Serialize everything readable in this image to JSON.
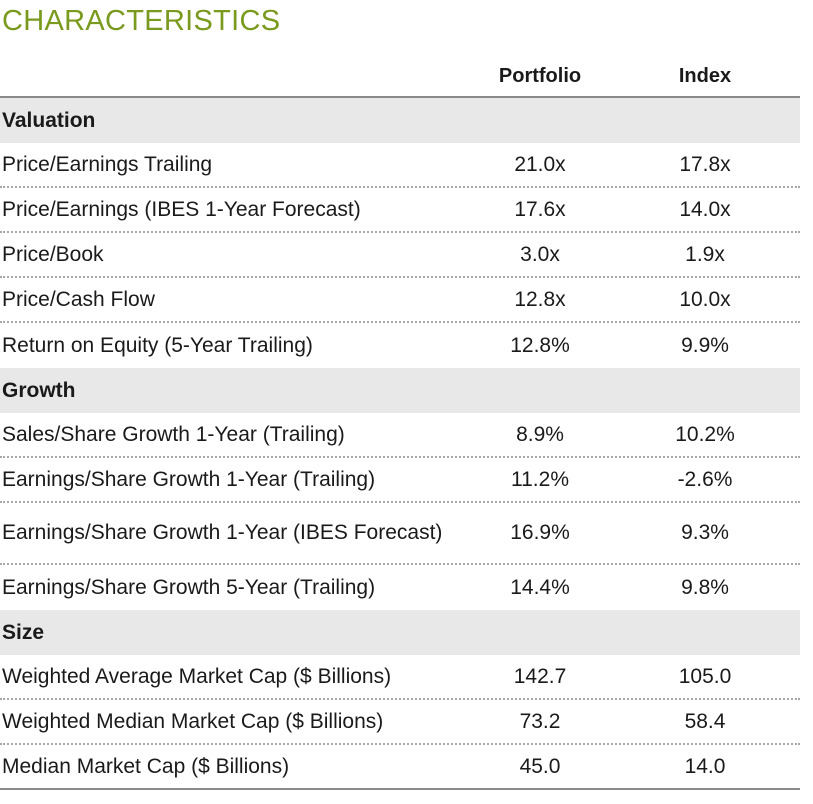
{
  "title": "CHARACTERISTICS",
  "columns": {
    "portfolio": "Portfolio",
    "index": "Index"
  },
  "sections": [
    {
      "name": "Valuation",
      "rows": [
        {
          "label": "Price/Earnings Trailing",
          "portfolio": "21.0x",
          "index": "17.8x"
        },
        {
          "label": "Price/Earnings (IBES 1-Year Forecast)",
          "portfolio": "17.6x",
          "index": "14.0x"
        },
        {
          "label": "Price/Book",
          "portfolio": "3.0x",
          "index": "1.9x"
        },
        {
          "label": "Price/Cash Flow",
          "portfolio": "12.8x",
          "index": "10.0x"
        },
        {
          "label": "Return on Equity (5-Year Trailing)",
          "portfolio": "12.8%",
          "index": "9.9%"
        }
      ]
    },
    {
      "name": "Growth",
      "rows": [
        {
          "label": "Sales/Share Growth 1-Year (Trailing)",
          "portfolio": "8.9%",
          "index": "10.2%"
        },
        {
          "label": "Earnings/Share Growth 1-Year (Trailing)",
          "portfolio": "11.2%",
          "index": "-2.6%"
        },
        {
          "label": "Earnings/Share Growth 1-Year (IBES Forecast)",
          "portfolio": "16.9%",
          "index": "9.3%"
        },
        {
          "label": "Earnings/Share Growth 5-Year (Trailing)",
          "portfolio": "14.4%",
          "index": "9.8%"
        }
      ]
    },
    {
      "name": "Size",
      "rows": [
        {
          "label": "Weighted Average Market Cap ($ Billions)",
          "portfolio": "142.7",
          "index": "105.0"
        },
        {
          "label": "Weighted Median Market Cap ($ Billions)",
          "portfolio": "73.2",
          "index": "58.4"
        },
        {
          "label": "Median Market Cap ($ Billions)",
          "portfolio": "45.0",
          "index": "14.0"
        }
      ]
    }
  ]
}
